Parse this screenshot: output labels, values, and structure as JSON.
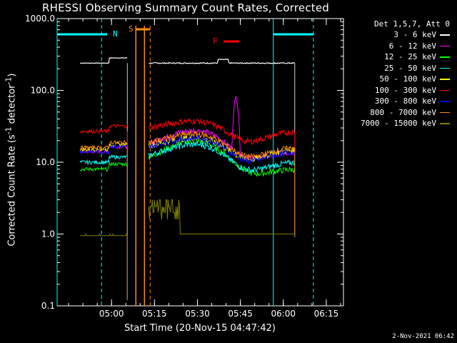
{
  "title": "RHESSI Observing Summary Count Rates, Corrected",
  "xlabel": "Start Time (20-Nov-15 04:47:42)",
  "ylabel_text": "Corrected Count Rate (s",
  "ylabel_sup": "-1",
  "ylabel_text2": " detector",
  "ylabel_sup2": "-1",
  "ylabel_end": ")",
  "stamp": "2-Nov-2021 06:42",
  "legend_header": "Det 1,5,7, Att 0",
  "markers": {
    "N": "N",
    "S": "S",
    "F": "F"
  },
  "colors": {
    "axis": "#ffffff",
    "night": "#00ffff",
    "saa": "#ff8c00",
    "flare": "#ff0000"
  },
  "chart_data": {
    "type": "line",
    "title": "RHESSI Observing Summary Count Rates, Corrected",
    "xlabel": "Start Time (20-Nov-15 04:47:42)",
    "ylabel": "Corrected Count Rate (s^-1 detector^-1)",
    "x_ticks": [
      "05:00",
      "05:15",
      "05:30",
      "05:45",
      "06:00",
      "06:15"
    ],
    "y_ticks": [
      "0.1",
      "1.0",
      "10.0",
      "100.0",
      "1000.0"
    ],
    "xlim_minutes": [
      -10,
      90
    ],
    "x_tick_minutes": [
      9,
      24,
      39,
      54,
      69,
      84
    ],
    "ylim": [
      0.1,
      1000
    ],
    "yscale": "log",
    "grid": false,
    "legend_position": "right",
    "series": [
      {
        "name": "3 - 6 keV",
        "color": "#ffffff",
        "level": 240,
        "mid": 240
      },
      {
        "name": "6 - 12 keV",
        "color": "#ff00ff",
        "level": 14,
        "mid": 28,
        "peak": 90
      },
      {
        "name": "12 - 25 keV",
        "color": "#00ff00",
        "level": 8,
        "mid": 20
      },
      {
        "name": "25 - 50 keV",
        "color": "#00ffff",
        "level": 10,
        "mid": 18
      },
      {
        "name": "50 - 100 keV",
        "color": "#ffff00",
        "level": 15,
        "mid": 22
      },
      {
        "name": "100 - 300 keV",
        "color": "#ff0000",
        "level": 27,
        "mid": 38
      },
      {
        "name": "300 - 800 keV",
        "color": "#0000ff",
        "level": 14,
        "mid": 22
      },
      {
        "name": "800 - 7000 keV",
        "color": "#ff8c00",
        "level": 16,
        "mid": 25
      },
      {
        "name": "7000 - 15000 keV",
        "color": "#808000",
        "level": 1.0,
        "mid": 2.0
      }
    ]
  }
}
